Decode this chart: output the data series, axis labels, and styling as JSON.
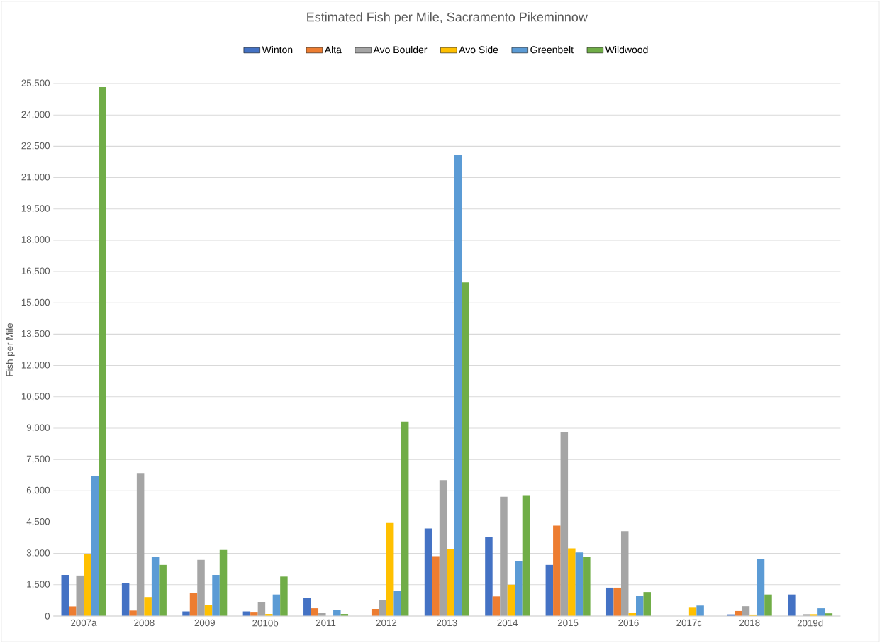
{
  "chart_data": {
    "type": "bar",
    "title": "Estimated Fish per Mile, Sacramento Pikeminnow",
    "ylabel": "Fish per Mile",
    "categories": [
      "2007a",
      "2008",
      "2009",
      "2010b",
      "2011",
      "2012",
      "2013",
      "2014",
      "2015",
      "2016",
      "2017c",
      "2018",
      "2019d"
    ],
    "series": [
      {
        "name": "Winton",
        "color": "#4472c4",
        "values": [
          1970,
          1590,
          220,
          220,
          850,
          null,
          4190,
          3770,
          2450,
          1360,
          null,
          80,
          1030
        ]
      },
      {
        "name": "Alta",
        "color": "#ed7d31",
        "values": [
          460,
          260,
          1120,
          200,
          370,
          340,
          2870,
          940,
          4330,
          1360,
          null,
          240,
          null
        ]
      },
      {
        "name": "Avo Boulder",
        "color": "#a5a5a5",
        "values": [
          1940,
          6850,
          2690,
          680,
          170,
          780,
          6510,
          5710,
          8800,
          4070,
          null,
          470,
          90
        ]
      },
      {
        "name": "Avo Side",
        "color": "#ffc000",
        "values": [
          2970,
          910,
          520,
          100,
          null,
          4460,
          3210,
          1500,
          3240,
          170,
          430,
          70,
          90
        ]
      },
      {
        "name": "Greenbelt",
        "color": "#5b9bd5",
        "values": [
          6700,
          2820,
          1970,
          1030,
          290,
          1210,
          22070,
          2640,
          3050,
          980,
          500,
          2730,
          370
        ]
      },
      {
        "name": "Wildwood",
        "color": "#70ad47",
        "values": [
          25330,
          2450,
          3170,
          1890,
          100,
          9310,
          15980,
          5790,
          2820,
          1150,
          null,
          1030,
          130
        ]
      }
    ],
    "ylim": [
      0,
      25500
    ],
    "yticks": [
      0,
      {
        "value": 1500,
        "label": "1,500"
      },
      {
        "value": 3000,
        "label": "3,000"
      },
      {
        "value": 4500,
        "label": "4,500"
      },
      {
        "value": 6000,
        "label": "6,000"
      },
      {
        "value": 7500,
        "label": "7,500"
      },
      {
        "value": 9000,
        "label": "9,000"
      },
      {
        "value": 10500,
        "label": "10,500"
      },
      {
        "value": 12000,
        "label": "12,000"
      },
      {
        "value": 13500,
        "label": "13,500"
      },
      {
        "value": 15000,
        "label": "15,000"
      },
      {
        "value": 16500,
        "label": "16,500"
      },
      {
        "value": 18000,
        "label": "18,000"
      },
      {
        "value": 19500,
        "label": "19,500"
      },
      {
        "value": 21000,
        "label": "21,000"
      },
      {
        "value": 22500,
        "label": "22,500"
      },
      {
        "value": 24000,
        "label": "24,000"
      },
      {
        "value": 25500,
        "label": "25,500"
      }
    ],
    "grid": "y",
    "legend": "top"
  }
}
